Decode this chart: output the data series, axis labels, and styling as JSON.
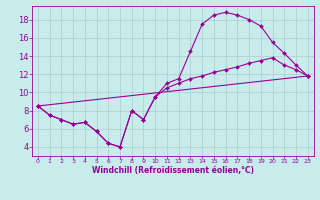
{
  "xlabel": "Windchill (Refroidissement éolien,°C)",
  "background_color": "#c8ecec",
  "line_color": "#990099",
  "grid_color": "#aacccc",
  "xlim": [
    -0.5,
    23.5
  ],
  "ylim": [
    3.0,
    19.5
  ],
  "xticks": [
    0,
    1,
    2,
    3,
    4,
    5,
    6,
    7,
    8,
    9,
    10,
    11,
    12,
    13,
    14,
    15,
    16,
    17,
    18,
    19,
    20,
    21,
    22,
    23
  ],
  "yticks": [
    4,
    6,
    8,
    10,
    12,
    14,
    16,
    18
  ],
  "line1_x": [
    0,
    1,
    2,
    3,
    4,
    5,
    6,
    7,
    8,
    9,
    10,
    11,
    12,
    13,
    14,
    15,
    16,
    17,
    18,
    19,
    20,
    21,
    22,
    23
  ],
  "line1_y": [
    8.5,
    7.5,
    7.0,
    6.5,
    6.7,
    5.7,
    4.4,
    4.0,
    8.0,
    7.0,
    9.5,
    11.0,
    11.5,
    14.5,
    17.5,
    18.5,
    18.8,
    18.5,
    18.0,
    17.3,
    15.5,
    14.3,
    13.0,
    11.8
  ],
  "line2_x": [
    0,
    1,
    2,
    3,
    4,
    5,
    6,
    7,
    8,
    9,
    10,
    11,
    12,
    13,
    14,
    15,
    16,
    17,
    18,
    19,
    20,
    21,
    22,
    23
  ],
  "line2_y": [
    8.5,
    7.5,
    7.0,
    6.5,
    6.7,
    5.7,
    4.4,
    4.0,
    8.0,
    7.0,
    9.5,
    10.5,
    11.0,
    11.5,
    11.8,
    12.2,
    12.5,
    12.8,
    13.2,
    13.5,
    13.8,
    13.0,
    12.5,
    11.8
  ],
  "line3_x": [
    0,
    23
  ],
  "line3_y": [
    8.5,
    11.8
  ],
  "xlabel_fontsize": 5.5,
  "tick_fontsize_x": 4.5,
  "tick_fontsize_y": 6.0
}
